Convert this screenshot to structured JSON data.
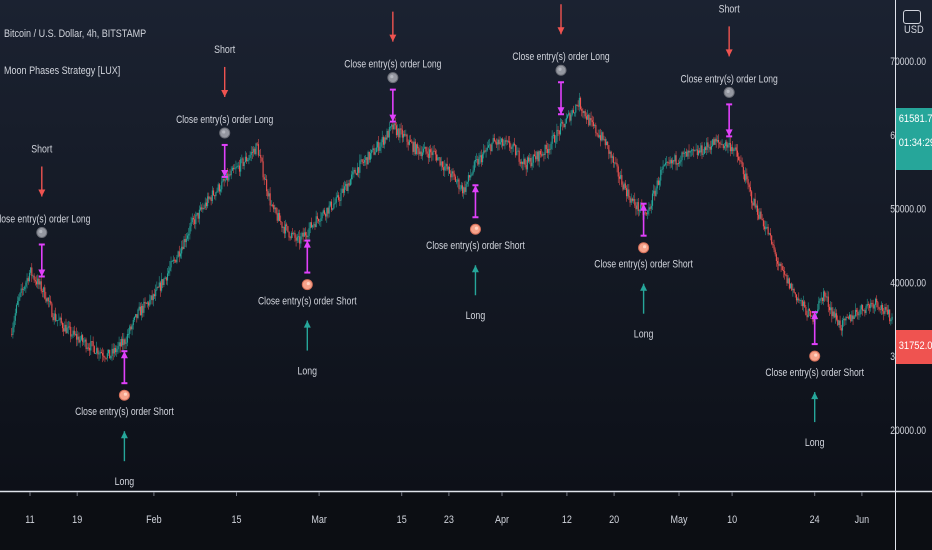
{
  "header": {
    "symbol": "Bitcoin / U.S. Dollar, 4h, BITSTAMP",
    "indicator": "Moon Phases Strategy [LUX]"
  },
  "axis": {
    "unit": "USD"
  },
  "colors": {
    "background": "#131722",
    "up": "#26a69a",
    "down": "#ef5350",
    "close_marker": "#e040fb",
    "short_arrow": "#ef5350",
    "long_arrow": "#26a69a",
    "text": "#d1d4dc",
    "full_moon": "#9598a1",
    "new_moon": "#f7a38b"
  },
  "icons": {
    "full_moon": "full-moon-icon",
    "new_moon": "new-moon-icon",
    "logo": "logo-icon"
  },
  "price_badges": {
    "last_price": "61581.70",
    "countdown": "01:34:29",
    "low_price": "31752.08"
  },
  "chart_data": {
    "type": "candlestick",
    "title": "Bitcoin / U.S. Dollar, 4h, BITSTAMP",
    "ylim": [
      12500,
      82000
    ],
    "y_ticks": [
      {
        "value": 20000,
        "label": "20000.00"
      },
      {
        "value": 30000,
        "label": "30000.00"
      },
      {
        "value": 40000,
        "label": "40000.00"
      },
      {
        "value": 50000,
        "label": "50000.00"
      },
      {
        "value": 60000,
        "label": "60000.00"
      },
      {
        "value": 70000,
        "label": "70000.00"
      }
    ],
    "x_ticks": [
      {
        "pos": 0.0,
        "label": "11"
      },
      {
        "pos": 8.0,
        "label": "19"
      },
      {
        "pos": 21.0,
        "label": "Feb"
      },
      {
        "pos": 35.0,
        "label": "15"
      },
      {
        "pos": 49.0,
        "label": "Mar"
      },
      {
        "pos": 63.0,
        "label": "15"
      },
      {
        "pos": 71.0,
        "label": "23"
      },
      {
        "pos": 80.0,
        "label": "Apr"
      },
      {
        "pos": 91.0,
        "label": "12"
      },
      {
        "pos": 99.0,
        "label": "20"
      },
      {
        "pos": 110.0,
        "label": "May"
      },
      {
        "pos": 119.0,
        "label": "10"
      },
      {
        "pos": 133.0,
        "label": "24"
      },
      {
        "pos": 141.0,
        "label": "Jun"
      }
    ],
    "price_path": [
      [
        -3.3,
        33000
      ],
      [
        -2.0,
        37500
      ],
      [
        0.0,
        41500
      ],
      [
        2.5,
        38500
      ],
      [
        4.0,
        35500
      ],
      [
        7.0,
        33000
      ],
      [
        10.0,
        31500
      ],
      [
        13.5,
        30000
      ],
      [
        16.0,
        32000
      ],
      [
        18.5,
        36000
      ],
      [
        21.0,
        38000
      ],
      [
        24.5,
        43000
      ],
      [
        27.5,
        48000
      ],
      [
        31.0,
        52000
      ],
      [
        34.5,
        55000
      ],
      [
        37.0,
        57000
      ],
      [
        38.5,
        58500
      ],
      [
        39.5,
        55000
      ],
      [
        41.0,
        50000
      ],
      [
        43.0,
        47500
      ],
      [
        45.5,
        45500
      ],
      [
        49.0,
        49000
      ],
      [
        52.0,
        51000
      ],
      [
        55.5,
        55500
      ],
      [
        58.0,
        57500
      ],
      [
        61.5,
        61000
      ],
      [
        63.0,
        60000
      ],
      [
        65.5,
        58000
      ],
      [
        68.5,
        57500
      ],
      [
        71.0,
        55000
      ],
      [
        73.5,
        52500
      ],
      [
        75.5,
        56000
      ],
      [
        78.5,
        59000
      ],
      [
        81.5,
        58500
      ],
      [
        84.0,
        56000
      ],
      [
        87.5,
        58000
      ],
      [
        90.5,
        61500
      ],
      [
        93.0,
        64500
      ],
      [
        95.0,
        61500
      ],
      [
        97.5,
        59000
      ],
      [
        99.5,
        55000
      ],
      [
        102.0,
        51000
      ],
      [
        104.5,
        49000
      ],
      [
        107.0,
        55000
      ],
      [
        110.0,
        57000
      ],
      [
        113.0,
        57500
      ],
      [
        116.0,
        59000
      ],
      [
        119.0,
        58500
      ],
      [
        120.5,
        56000
      ],
      [
        122.5,
        51000
      ],
      [
        125.0,
        47000
      ],
      [
        127.0,
        42000
      ],
      [
        130.0,
        38000
      ],
      [
        132.5,
        35000
      ],
      [
        134.5,
        38500
      ],
      [
        136.0,
        36000
      ],
      [
        137.5,
        34000
      ],
      [
        140.0,
        36000
      ],
      [
        143.5,
        37500
      ],
      [
        145.0,
        35800
      ],
      [
        147.0,
        34800
      ],
      [
        148.5,
        33000
      ]
    ],
    "events": [
      {
        "pos": 2.0,
        "price": 40000,
        "type": "close",
        "dir": "down",
        "label": "Close entry(s) order Long"
      },
      {
        "pos": 2.0,
        "price": 40000,
        "type": "entry",
        "dir": "down",
        "label": "Short"
      },
      {
        "pos": 2.0,
        "price": 40000,
        "type": "full",
        "dir": "down"
      },
      {
        "pos": 16.0,
        "price": 31500,
        "type": "close",
        "dir": "up",
        "label": "Close entry(s) order Short"
      },
      {
        "pos": 16.0,
        "price": 31500,
        "type": "entry",
        "dir": "up",
        "label": "Long"
      },
      {
        "pos": 16.0,
        "price": 31500,
        "type": "new",
        "dir": "up"
      },
      {
        "pos": 33.0,
        "price": 53500,
        "type": "close",
        "dir": "down",
        "label": "Close entry(s) order Long"
      },
      {
        "pos": 33.0,
        "price": 53500,
        "type": "entry",
        "dir": "down",
        "label": "Short"
      },
      {
        "pos": 33.0,
        "price": 53500,
        "type": "full",
        "dir": "down"
      },
      {
        "pos": 47.0,
        "price": 46500,
        "type": "close",
        "dir": "up",
        "label": "Close entry(s) order Short"
      },
      {
        "pos": 47.0,
        "price": 46500,
        "type": "entry",
        "dir": "up",
        "label": "Long"
      },
      {
        "pos": 47.0,
        "price": 46500,
        "type": "new",
        "dir": "up"
      },
      {
        "pos": 61.5,
        "price": 61000,
        "type": "close",
        "dir": "down",
        "label": "Close entry(s) order Long"
      },
      {
        "pos": 61.5,
        "price": 61000,
        "type": "entry",
        "dir": "down"
      },
      {
        "pos": 61.5,
        "price": 61000,
        "type": "full",
        "dir": "down"
      },
      {
        "pos": 75.5,
        "price": 54000,
        "type": "close",
        "dir": "up",
        "label": "Close entry(s) order Short"
      },
      {
        "pos": 75.5,
        "price": 54000,
        "type": "entry",
        "dir": "up",
        "label": "Long"
      },
      {
        "pos": 75.5,
        "price": 54000,
        "type": "new",
        "dir": "up"
      },
      {
        "pos": 90.0,
        "price": 62000,
        "type": "close",
        "dir": "down",
        "label": "Close entry(s) order Long"
      },
      {
        "pos": 90.0,
        "price": 62000,
        "type": "entry",
        "dir": "down"
      },
      {
        "pos": 90.0,
        "price": 62000,
        "type": "full",
        "dir": "down"
      },
      {
        "pos": 104.0,
        "price": 51500,
        "type": "close",
        "dir": "up",
        "label": "Close entry(s) order Short"
      },
      {
        "pos": 104.0,
        "price": 51500,
        "type": "entry",
        "dir": "up",
        "label": "Long"
      },
      {
        "pos": 104.0,
        "price": 51500,
        "type": "new",
        "dir": "up"
      },
      {
        "pos": 118.5,
        "price": 59000,
        "type": "close",
        "dir": "down",
        "label": "Close entry(s) order Long"
      },
      {
        "pos": 118.5,
        "price": 59000,
        "type": "entry",
        "dir": "down",
        "label": "Short"
      },
      {
        "pos": 118.5,
        "price": 59000,
        "type": "full",
        "dir": "down"
      },
      {
        "pos": 133.0,
        "price": 36800,
        "type": "close",
        "dir": "up",
        "label": "Close entry(s) order Short"
      },
      {
        "pos": 133.0,
        "price": 36800,
        "type": "entry",
        "dir": "up",
        "label": "Long"
      },
      {
        "pos": 133.0,
        "price": 36800,
        "type": "new",
        "dir": "up"
      }
    ]
  }
}
